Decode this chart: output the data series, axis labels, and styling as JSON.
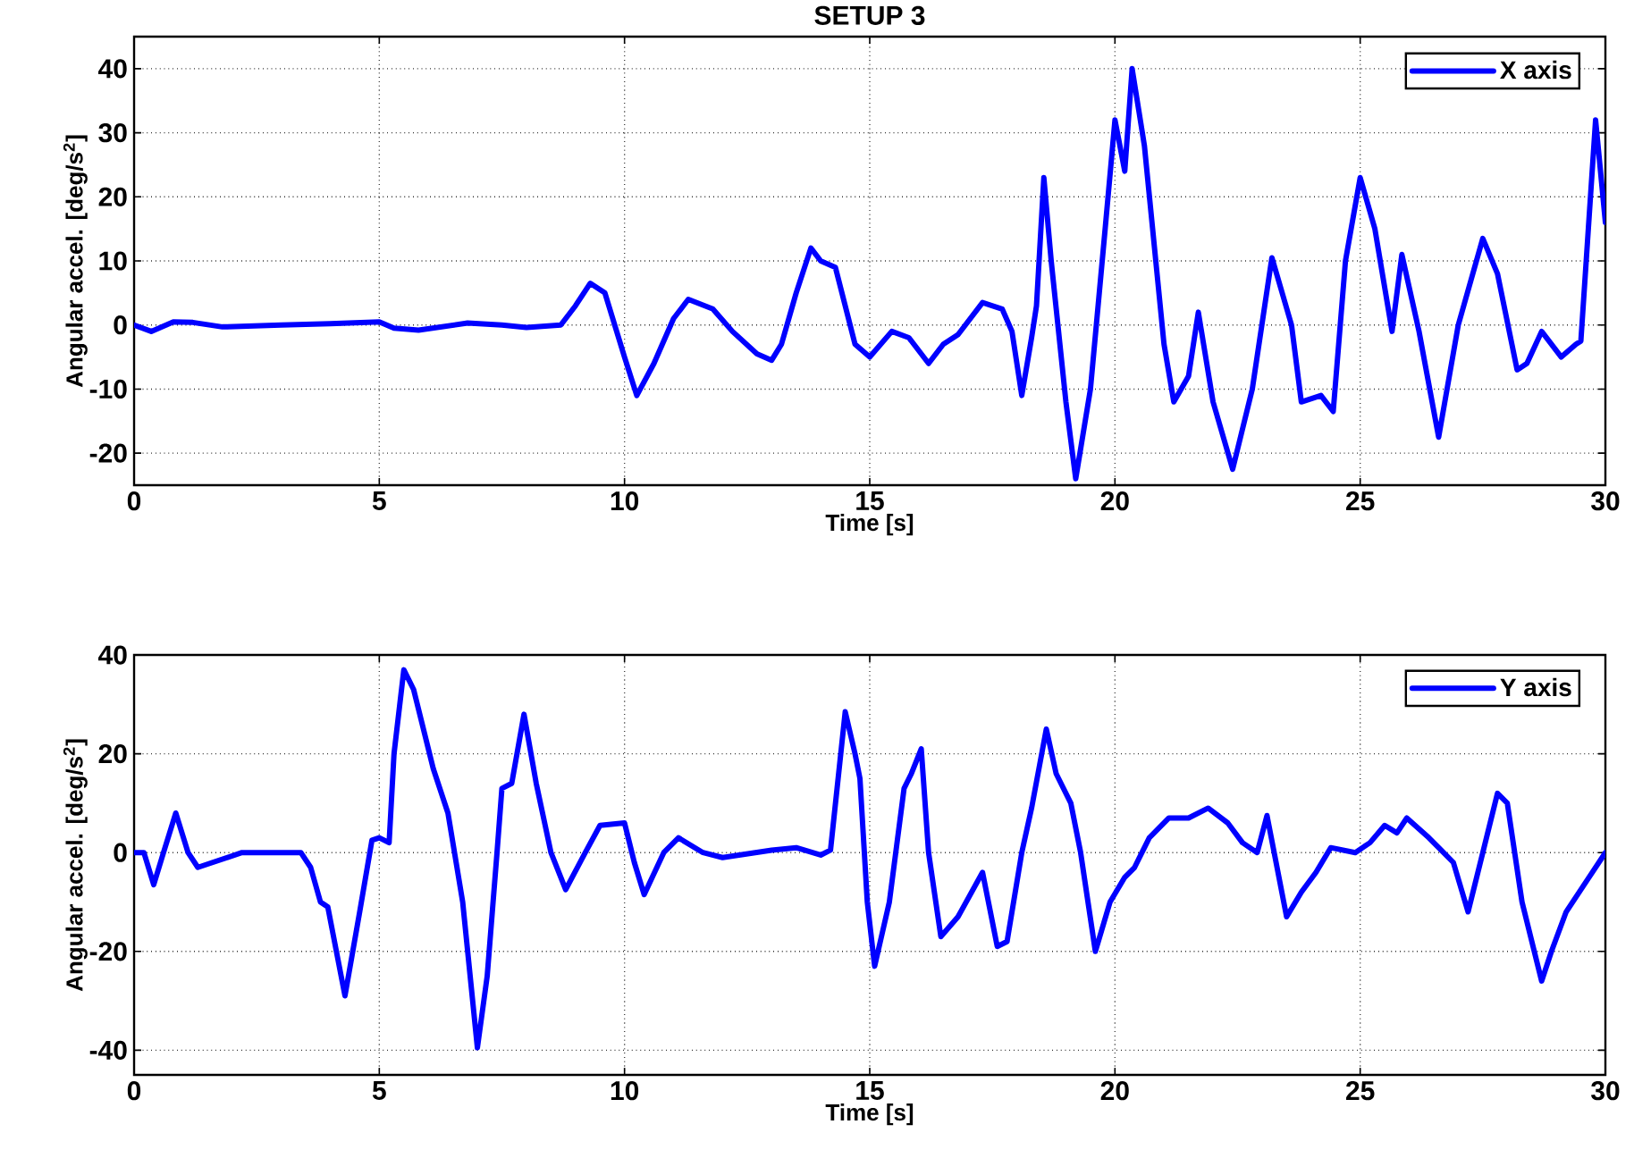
{
  "chart_data": [
    {
      "type": "line",
      "title": "SETUP 3",
      "xlabel": "Time [s]",
      "ylabel": "Angular accel. [deg/s$^{2}$]",
      "xlim": [
        0,
        30
      ],
      "ylim": [
        -25,
        45
      ],
      "xticks": [
        0,
        5,
        10,
        15,
        20,
        25,
        30
      ],
      "yticks": [
        -20,
        -10,
        0,
        10,
        20,
        30,
        40
      ],
      "grid": true,
      "legend": "top right",
      "line_style": "solid",
      "series": [
        {
          "name": "X axis",
          "color": "#0000ff",
          "x": [
            0,
            0.35,
            0.8,
            1.2,
            1.8,
            3,
            4,
            5,
            5.3,
            5.8,
            6.8,
            7.5,
            8,
            8.7,
            9.0,
            9.3,
            9.6,
            10.0,
            10.25,
            10.6,
            11.0,
            11.3,
            11.8,
            12.2,
            12.7,
            13.0,
            13.2,
            13.5,
            13.8,
            14.0,
            14.3,
            14.7,
            15.0,
            15.45,
            15.8,
            16.2,
            16.5,
            16.8,
            17.3,
            17.7,
            17.9,
            18.1,
            18.3,
            18.4,
            18.55,
            18.7,
            19.0,
            19.2,
            19.5,
            19.8,
            20.0,
            20.2,
            20.35,
            20.6,
            21.0,
            21.2,
            21.5,
            21.7,
            22.0,
            22.4,
            22.8,
            23.2,
            23.6,
            23.8,
            24.2,
            24.45,
            24.7,
            25.0,
            25.3,
            25.65,
            25.85,
            26.2,
            26.6,
            27.0,
            27.5,
            27.8,
            28.2,
            28.4,
            28.7,
            29.1,
            29.4,
            29.5,
            29.8,
            30
          ],
          "values": [
            0,
            -1,
            0.5,
            0.4,
            -0.3,
            0,
            0.2,
            0.5,
            -0.5,
            -0.8,
            0.3,
            0,
            -0.4,
            0,
            3,
            6.5,
            5,
            -5,
            -11,
            -6,
            1,
            4,
            2.5,
            -1,
            -4.5,
            -5.5,
            -3,
            5,
            12,
            10,
            9,
            -3,
            -5,
            -1,
            -2,
            -6,
            -3,
            -1.5,
            3.5,
            2.5,
            -1,
            -11,
            -2,
            3,
            23,
            10,
            -12,
            -24,
            -10,
            15,
            32,
            24,
            40,
            28,
            -3,
            -12,
            -8,
            2,
            -12,
            -22.5,
            -10,
            10.5,
            0,
            -12,
            -11,
            -13.5,
            10,
            23,
            15,
            -1,
            11,
            -1,
            -17.5,
            0,
            13.5,
            8,
            -7,
            -6,
            -1,
            -5,
            -3,
            -2.5,
            32,
            16
          ]
        }
      ]
    },
    {
      "type": "line",
      "xlabel": "Time [s]",
      "ylabel": "Angular accel. [deg/s$^{2}$]",
      "xlim": [
        0,
        30
      ],
      "ylim": [
        -45,
        40
      ],
      "xticks": [
        0,
        5,
        10,
        15,
        20,
        25,
        30
      ],
      "yticks": [
        -40,
        -20,
        0,
        20,
        40
      ],
      "grid": true,
      "legend": "top right",
      "line_style": "solid",
      "series": [
        {
          "name": "Y axis",
          "color": "#0000ff",
          "x": [
            0,
            0.2,
            0.4,
            0.6,
            0.85,
            1.1,
            1.3,
            2.2,
            3.4,
            3.6,
            3.8,
            3.95,
            4.3,
            4.6,
            4.85,
            5.0,
            5.2,
            5.3,
            5.5,
            5.7,
            6.1,
            6.4,
            6.7,
            7.0,
            7.2,
            7.4,
            7.5,
            7.7,
            7.95,
            8.2,
            8.5,
            8.8,
            9.2,
            9.5,
            10.0,
            10.2,
            10.4,
            10.8,
            11.1,
            11.6,
            12.0,
            13.0,
            13.5,
            14.0,
            14.2,
            14.5,
            14.7,
            14.8,
            14.95,
            15.1,
            15.4,
            15.7,
            15.85,
            16.05,
            16.2,
            16.45,
            16.8,
            17.3,
            17.6,
            17.8,
            18.1,
            18.3,
            18.6,
            18.8,
            19.1,
            19.3,
            19.6,
            19.9,
            20.2,
            20.4,
            20.7,
            21.1,
            21.5,
            21.9,
            22.3,
            22.6,
            22.9,
            23.1,
            23.5,
            23.8,
            24.1,
            24.4,
            24.9,
            25.2,
            25.5,
            25.75,
            25.95,
            26.4,
            26.6,
            26.9,
            27.2,
            27.5,
            27.8,
            28.0,
            28.3,
            28.7,
            28.9,
            29.2,
            30
          ],
          "values": [
            0,
            0,
            -6.5,
            0,
            8,
            0,
            -3,
            0,
            0,
            -3,
            -10,
            -11,
            -29,
            -12,
            2.5,
            3,
            2,
            20,
            37,
            33,
            17,
            8,
            -10,
            -39.5,
            -25,
            0,
            13,
            14,
            28,
            14,
            0,
            -7.5,
            0,
            5.5,
            6,
            -2,
            -8.5,
            0,
            3,
            0,
            -1,
            0.5,
            1,
            -0.5,
            0.5,
            28.5,
            20,
            15,
            -10,
            -23,
            -10,
            13,
            16,
            21,
            0,
            -17,
            -13,
            -4,
            -19,
            -18,
            0,
            9,
            25,
            16,
            10,
            0,
            -20,
            -10,
            -5,
            -3,
            3,
            7,
            7,
            9,
            6,
            2,
            0,
            7.5,
            -13,
            -8,
            -4,
            1,
            0,
            2,
            5.5,
            4,
            7,
            3,
            1,
            -2,
            -12,
            0,
            12,
            10,
            -10,
            -26,
            -20,
            -12,
            0
          ]
        }
      ]
    }
  ]
}
